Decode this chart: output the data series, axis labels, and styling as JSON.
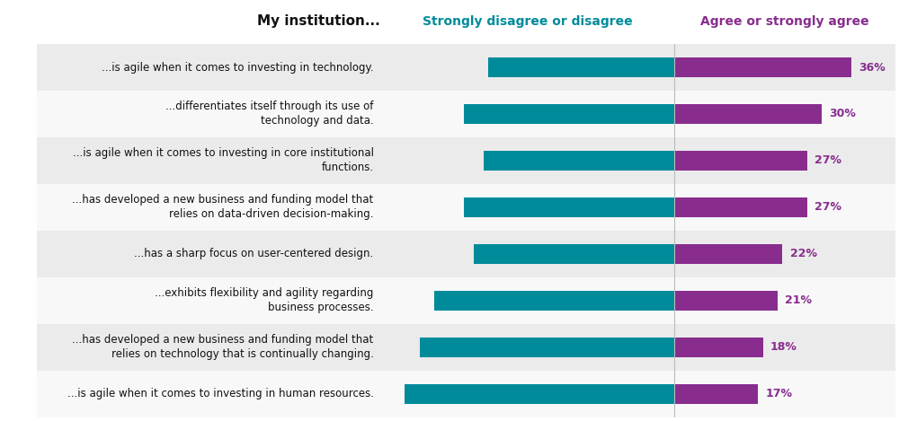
{
  "title": "My institution...",
  "col_header_disagree": "Strongly disagree or disagree",
  "col_header_agree": "Agree or strongly agree",
  "categories": [
    "...is agile when it comes to investing in technology.",
    "...differentiates itself through its use of\ntechnology and data.",
    "...is agile when it comes to investing in core institutional\nfunctions.",
    "...has developed a new business and funding model that\nrelies on data-driven decision-making.",
    "...has a sharp focus on user-centered design.",
    "...exhibits flexibility and agility regarding\nbusiness processes.",
    "...has developed a new business and funding model that\nrelies on technology that is continually changing.",
    "...is agile when it comes to investing in human resources."
  ],
  "disagree_values": [
    38,
    43,
    39,
    43,
    41,
    49,
    52,
    55
  ],
  "agree_values": [
    36,
    30,
    27,
    27,
    22,
    21,
    18,
    17
  ],
  "disagree_color": "#008B9B",
  "agree_color": "#882D8E",
  "bg_color_odd": "#EBEBEB",
  "bg_color_even": "#F8F8F8",
  "bar_height": 0.42,
  "title_fontsize": 11,
  "label_fontsize": 8.5,
  "header_fontsize": 10,
  "pct_fontsize": 9,
  "max_disagree": 60,
  "max_agree": 45
}
